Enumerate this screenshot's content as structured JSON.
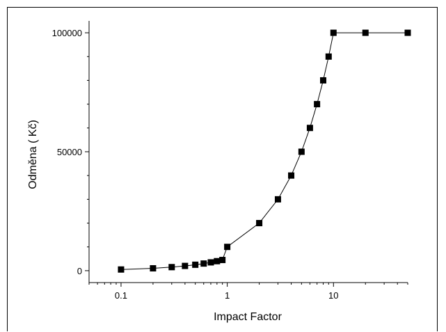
{
  "chart_data": {
    "type": "line",
    "title": "",
    "xlabel": "Impact Factor",
    "ylabel": "Odměna (  Kč)",
    "x_scale": "log",
    "xlim": [
      0.05,
      50
    ],
    "ylim": [
      -5000,
      105000
    ],
    "x_ticks": [
      {
        "value": 0.1,
        "label": "0.1"
      },
      {
        "value": 1,
        "label": "1"
      },
      {
        "value": 10,
        "label": "10"
      }
    ],
    "y_ticks": [
      {
        "value": 0,
        "label": "0"
      },
      {
        "value": 50000,
        "label": "50000"
      },
      {
        "value": 100000,
        "label": "100000"
      }
    ],
    "marker": "square",
    "line_color": "#000000",
    "series": [
      {
        "x": [
          0.1,
          0.2,
          0.3,
          0.4,
          0.5,
          0.6,
          0.7,
          0.8,
          0.9,
          1,
          2,
          3,
          4,
          5,
          6,
          7,
          8,
          9,
          10,
          20,
          50
        ],
        "y": [
          500,
          1000,
          1500,
          2000,
          2500,
          3000,
          3500,
          4000,
          4500,
          10000,
          20000,
          30000,
          40000,
          50000,
          60000,
          70000,
          80000,
          90000,
          100000,
          100000,
          100000
        ]
      }
    ]
  }
}
